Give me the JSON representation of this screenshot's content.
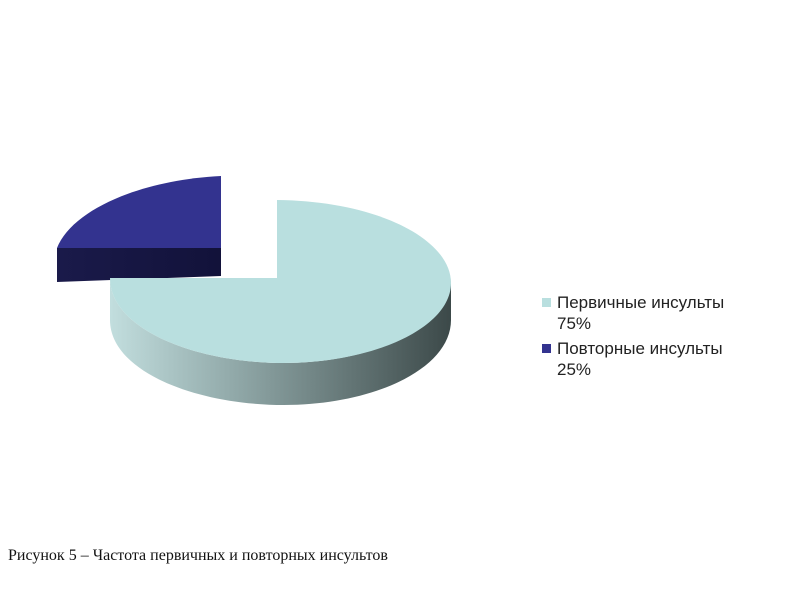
{
  "caption": "Рисунок 5 – Частота первичных и повторных инсультов",
  "chart_data": {
    "type": "pie",
    "style": "3d-exploded",
    "title": "",
    "slices": [
      {
        "label": "Первичные инсульты",
        "value": 75,
        "value_label": "75%",
        "color": "#b9dfdf",
        "side_color": "#8fb5b5"
      },
      {
        "label": "Повторные инсульты",
        "value": 25,
        "value_label": "25%",
        "color": "#33338f",
        "side_color": "#1a1a4f"
      }
    ],
    "legend_position": "right"
  }
}
